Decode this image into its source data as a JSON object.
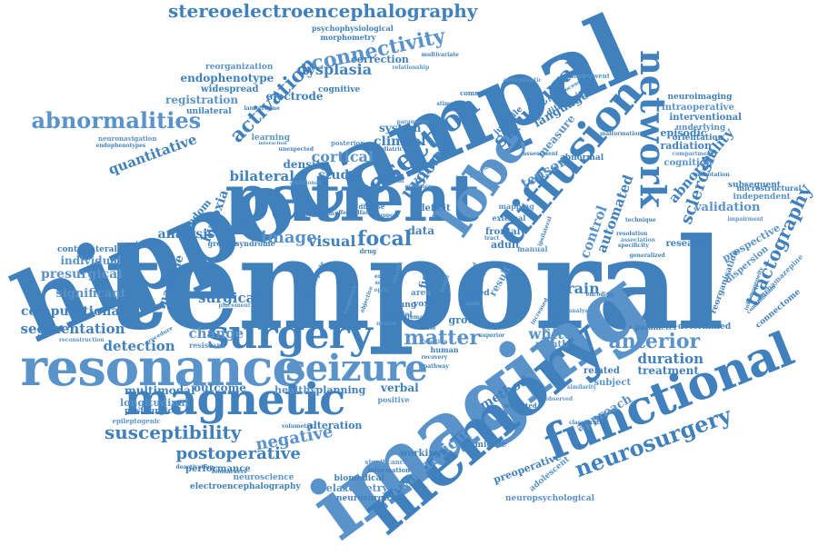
{
  "colors": {
    "primary": "#3f80bd",
    "secondary": "#5a93c9",
    "background": "#ffffff"
  },
  "words": [
    {
      "text": "temporal",
      "weight": 100
    },
    {
      "text": "hippocampal",
      "weight": 72
    },
    {
      "text": "imaging",
      "weight": 62
    },
    {
      "text": "patient",
      "weight": 50
    },
    {
      "text": "memory",
      "weight": 48
    },
    {
      "text": "resonance",
      "weight": 38
    },
    {
      "text": "functional",
      "weight": 36
    },
    {
      "text": "magnetic",
      "weight": 34
    },
    {
      "text": "lobe",
      "weight": 30
    },
    {
      "text": "diffusion",
      "weight": 30
    },
    {
      "text": "surgery",
      "weight": 30
    },
    {
      "text": "seizure",
      "weight": 28
    },
    {
      "text": "network",
      "weight": 26
    },
    {
      "text": "resection",
      "weight": 22
    },
    {
      "text": "abnormalities",
      "weight": 20
    },
    {
      "text": "neurosurgery",
      "weight": 20
    },
    {
      "text": "activation",
      "weight": 18
    },
    {
      "text": "connectivity",
      "weight": 16
    },
    {
      "text": "structural",
      "weight": 16
    },
    {
      "text": "tractography",
      "weight": 15
    },
    {
      "text": "anterior",
      "weight": 15
    },
    {
      "text": "stereoelectroencephalography",
      "weight": 15
    },
    {
      "text": "susceptibility",
      "weight": 14
    },
    {
      "text": "matter",
      "weight": 14
    },
    {
      "text": "postoperative",
      "weight": 13
    },
    {
      "text": "sclerosis",
      "weight": 13
    },
    {
      "text": "negative",
      "weight": 13
    },
    {
      "text": "dysplasia",
      "weight": 12
    },
    {
      "text": "lesion",
      "weight": 12
    },
    {
      "text": "evaluation",
      "weight": 12
    },
    {
      "text": "focal",
      "weight": 12
    },
    {
      "text": "visual",
      "weight": 12
    },
    {
      "text": "image",
      "weight": 12
    },
    {
      "text": "quantitative",
      "weight": 11
    },
    {
      "text": "volume",
      "weight": 11
    },
    {
      "text": "cortical",
      "weight": 11
    },
    {
      "text": "abnormality",
      "weight": 11
    },
    {
      "text": "automated",
      "weight": 11
    },
    {
      "text": "control",
      "weight": 11
    },
    {
      "text": "bilateral",
      "weight": 11
    },
    {
      "text": "duration",
      "weight": 11
    },
    {
      "text": "white",
      "weight": 11
    },
    {
      "text": "brain",
      "weight": 11
    },
    {
      "text": "method",
      "weight": 11
    },
    {
      "text": "approach",
      "weight": 10
    },
    {
      "text": "segmentation",
      "weight": 10
    },
    {
      "text": "computational",
      "weight": 10
    },
    {
      "text": "presurgical",
      "weight": 10
    },
    {
      "text": "surgical",
      "weight": 10
    },
    {
      "text": "detection",
      "weight": 10
    },
    {
      "text": "change",
      "weight": 10
    },
    {
      "text": "study",
      "weight": 10
    },
    {
      "text": "clinical",
      "weight": 10
    },
    {
      "text": "tensor",
      "weight": 10
    },
    {
      "text": "language",
      "weight": 10
    },
    {
      "text": "hypoxia",
      "weight": 9
    },
    {
      "text": "validation",
      "weight": 9
    },
    {
      "text": "analysis",
      "weight": 9
    },
    {
      "text": "machine",
      "weight": 9
    },
    {
      "text": "significant",
      "weight": 9
    },
    {
      "text": "endophenotype",
      "weight": 9
    },
    {
      "text": "electrode",
      "weight": 8
    },
    {
      "text": "registration",
      "weight": 8
    },
    {
      "text": "outcome",
      "weight": 8
    },
    {
      "text": "multimodal",
      "weight": 8
    },
    {
      "text": "longitudinal",
      "weight": 8
    },
    {
      "text": "treatment",
      "weight": 8
    },
    {
      "text": "verbal",
      "weight": 8
    },
    {
      "text": "healthy",
      "weight": 8
    },
    {
      "text": "planning",
      "weight": 8
    },
    {
      "text": "alteration",
      "weight": 8
    },
    {
      "text": "individual",
      "weight": 8
    },
    {
      "text": "density",
      "weight": 8
    },
    {
      "text": "system",
      "weight": 8
    },
    {
      "text": "prospective",
      "weight": 7
    },
    {
      "text": "preoperative",
      "weight": 7
    },
    {
      "text": "performance",
      "weight": 7
    },
    {
      "text": "relaxometry",
      "weight": 7
    },
    {
      "text": "working",
      "weight": 7
    },
    {
      "text": "related",
      "weight": 7
    },
    {
      "text": "subject",
      "weight": 7
    },
    {
      "text": "field",
      "weight": 7
    },
    {
      "text": "data",
      "weight": 7
    },
    {
      "text": "measure",
      "weight": 7
    },
    {
      "text": "episodic",
      "weight": 7
    },
    {
      "text": "radiation",
      "weight": 7
    },
    {
      "text": "cognition",
      "weight": 7
    },
    {
      "text": "correction",
      "weight": 7
    },
    {
      "text": "widespread",
      "weight": 7
    },
    {
      "text": "reorganization",
      "weight": 6
    },
    {
      "text": "contralateral",
      "weight": 6
    },
    {
      "text": "postsurgical",
      "weight": 6
    },
    {
      "text": "neuroscience",
      "weight": 6
    },
    {
      "text": "electroencephalography",
      "weight": 6
    },
    {
      "text": "neurosurgical",
      "weight": 6
    },
    {
      "text": "neuropsychological",
      "weight": 6
    },
    {
      "text": "information",
      "weight": 5
    },
    {
      "text": "biomedical",
      "weight": 6
    },
    {
      "text": "epileptogenic",
      "weight": 5
    },
    {
      "text": "freedom",
      "weight": 6
    },
    {
      "text": "unilateral",
      "weight": 6
    },
    {
      "text": "neuronavigation",
      "weight": 5
    },
    {
      "text": "endophenotypes",
      "weight": 5
    },
    {
      "text": "cognitive",
      "weight": 6
    },
    {
      "text": "learning",
      "weight": 6
    },
    {
      "text": "morphometry",
      "weight": 5
    },
    {
      "text": "psychophysiological",
      "weight": 5
    },
    {
      "text": "intraoperative",
      "weight": 6
    },
    {
      "text": "interventional",
      "weight": 6
    },
    {
      "text": "orientation",
      "weight": 6
    },
    {
      "text": "underlying",
      "weight": 6
    },
    {
      "text": "neuroimaging",
      "weight": 6
    },
    {
      "text": "subsequent",
      "weight": 6
    },
    {
      "text": "independent",
      "weight": 6
    },
    {
      "text": "microstructural",
      "weight": 6
    },
    {
      "text": "research",
      "weight": 6
    },
    {
      "text": "dispersion",
      "weight": 6
    },
    {
      "text": "reorganisation",
      "weight": 6
    },
    {
      "text": "connectome",
      "weight": 6
    },
    {
      "text": "carbamazepine",
      "weight": 5
    },
    {
      "text": "determined",
      "weight": 6
    },
    {
      "text": "parameter",
      "weight": 6
    },
    {
      "text": "month",
      "weight": 6
    },
    {
      "text": "frontal",
      "weight": 6
    },
    {
      "text": "adult",
      "weight": 6
    },
    {
      "text": "manual",
      "weight": 5
    },
    {
      "text": "deficit",
      "weight": 6
    },
    {
      "text": "external",
      "weight": 5
    },
    {
      "text": "result",
      "weight": 6
    },
    {
      "text": "based",
      "weight": 6
    },
    {
      "text": "group",
      "weight": 6
    },
    {
      "text": "area",
      "weight": 6
    },
    {
      "text": "voxel",
      "weight": 6
    },
    {
      "text": "middle",
      "weight": 6
    },
    {
      "text": "adolescent",
      "weight": 6
    },
    {
      "text": "abnormal",
      "weight": 6
    },
    {
      "text": "diffusivity",
      "weight": 6
    },
    {
      "text": "posterior",
      "weight": 5
    },
    {
      "text": "juvenile",
      "weight": 6
    },
    {
      "text": "common",
      "weight": 5
    },
    {
      "text": "underwent",
      "weight": 5
    },
    {
      "text": "greater",
      "weight": 5
    },
    {
      "text": "syndrome",
      "weight": 5
    },
    {
      "text": "resistant",
      "weight": 5
    },
    {
      "text": "volumetry",
      "weight": 5
    },
    {
      "text": "human",
      "weight": 5
    },
    {
      "text": "positive",
      "weight": 5
    },
    {
      "text": "young",
      "weight": 5
    },
    {
      "text": "model",
      "weight": 5
    },
    {
      "text": "significance",
      "weight": 5
    },
    {
      "text": "deactivation",
      "weight": 4
    },
    {
      "text": "biomarkers",
      "weight": 4
    },
    {
      "text": "placement",
      "weight": 4
    },
    {
      "text": "recovery",
      "weight": 4
    },
    {
      "text": "pathway",
      "weight": 4
    },
    {
      "text": "similarity",
      "weight": 4
    },
    {
      "text": "weighted",
      "weight": 4
    },
    {
      "text": "pediatric",
      "weight": 4
    },
    {
      "text": "evidence",
      "weight": 4
    },
    {
      "text": "different",
      "weight": 4
    },
    {
      "text": "disease",
      "weight": 4
    },
    {
      "text": "mapping",
      "weight": 4
    },
    {
      "text": "technique",
      "weight": 4
    },
    {
      "text": "resolution",
      "weight": 4
    },
    {
      "text": "impairment",
      "weight": 4
    },
    {
      "text": "malrotation",
      "weight": 4
    },
    {
      "text": "specificity",
      "weight": 4
    },
    {
      "text": "compartment",
      "weight": 4
    },
    {
      "text": "inhomogeneity",
      "weight": 4
    },
    {
      "text": "combination",
      "weight": 4
    },
    {
      "text": "reconstruction",
      "weight": 4
    },
    {
      "text": "procedure",
      "weight": 4
    },
    {
      "text": "volumetric",
      "weight": 4
    },
    {
      "text": "relationship",
      "weight": 4
    },
    {
      "text": "multivariate",
      "weight": 4
    },
    {
      "text": "postprocessing",
      "weight": 4
    },
    {
      "text": "antiepileptic",
      "weight": 4
    },
    {
      "text": "stimulation",
      "weight": 4
    },
    {
      "text": "lamotrigine",
      "weight": 4
    },
    {
      "text": "parametric",
      "weight": 4
    },
    {
      "text": "assessment",
      "weight": 4
    },
    {
      "text": "malformation",
      "weight": 4
    },
    {
      "text": "association",
      "weight": 4
    },
    {
      "text": "generalized",
      "weight": 4
    },
    {
      "text": "encoding",
      "weight": 4
    },
    {
      "text": "analyse",
      "weight": 4
    },
    {
      "text": "increased",
      "weight": 4
    },
    {
      "text": "fractional",
      "weight": 4
    },
    {
      "text": "correlated",
      "weight": 4
    },
    {
      "text": "drug",
      "weight": 4
    },
    {
      "text": "effect",
      "weight": 4
    },
    {
      "text": "optic",
      "weight": 4
    },
    {
      "text": "scan",
      "weight": 4
    },
    {
      "text": "female",
      "weight": 4
    },
    {
      "text": "male",
      "weight": 4
    },
    {
      "text": "whole",
      "weight": 4
    },
    {
      "text": "tract",
      "weight": 4
    },
    {
      "text": "function",
      "weight": 4
    },
    {
      "text": "superior",
      "weight": 4
    },
    {
      "text": "objective",
      "weight": 4
    },
    {
      "text": "frequency",
      "weight": 4
    },
    {
      "text": "interaction",
      "weight": 4
    },
    {
      "text": "unexpected",
      "weight": 4
    },
    {
      "text": "additional",
      "weight": 4
    },
    {
      "text": "ipsilateral",
      "weight": 4
    },
    {
      "text": "classification",
      "weight": 4
    },
    {
      "text": "observed",
      "weight": 4
    },
    {
      "text": "cohort",
      "weight": 4
    },
    {
      "text": "aged",
      "weight": 4
    },
    {
      "text": "limbic",
      "weight": 4
    },
    {
      "text": "anterograde",
      "weight": 4
    },
    {
      "text": "entire",
      "weight": 4
    },
    {
      "text": "specific",
      "weight": 4
    },
    {
      "text": "artifact",
      "weight": 4
    },
    {
      "text": "cause",
      "weight": 4
    },
    {
      "text": "neural",
      "weight": 4
    },
    {
      "text": "support",
      "weight": 4
    },
    {
      "text": "paradigm",
      "weight": 4
    }
  ]
}
